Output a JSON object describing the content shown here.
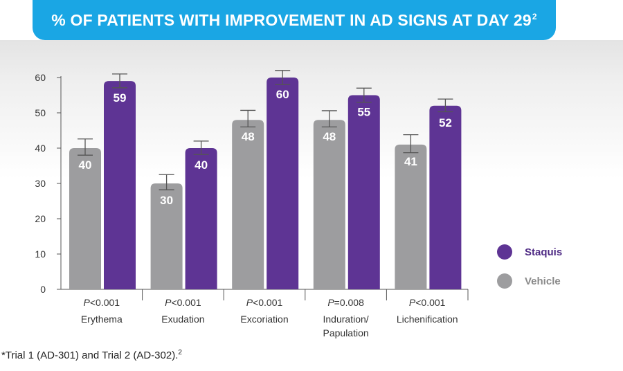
{
  "header": {
    "title": "% OF PATIENTS WITH IMPROVEMENT IN AD SIGNS AT DAY 29",
    "title_superscript": "2"
  },
  "footnote": {
    "text": "*Trial 1 (AD-301) and Trial 2 (AD-302).",
    "superscript": "2"
  },
  "colors": {
    "title_bar": "#1aa6e4",
    "staquis": "#5e3494",
    "vehicle": "#9d9d9f",
    "staquis_legend_text": "#4e2a84",
    "vehicle_legend_text": "#8a8a8a"
  },
  "chart_data": {
    "type": "bar",
    "categories": [
      "Erythema",
      "Exudation",
      "Excoriation",
      "Induration/\nPapulation",
      "Lichenification"
    ],
    "p_values": [
      {
        "prefix": "P",
        "rest": "<0.001"
      },
      {
        "prefix": "P",
        "rest": "<0.001"
      },
      {
        "prefix": "P",
        "rest": "<0.001"
      },
      {
        "prefix": "P",
        "rest": "=0.008"
      },
      {
        "prefix": "P",
        "rest": "<0.001"
      }
    ],
    "series": [
      {
        "name": "Vehicle",
        "values": [
          40,
          30,
          48,
          48,
          41
        ],
        "error_upper": [
          42.6,
          32.5,
          50.7,
          50.6,
          43.8
        ],
        "error_lower": [
          38.0,
          28.2,
          46.0,
          46.0,
          38.7
        ]
      },
      {
        "name": "Staquis",
        "values": [
          59,
          40,
          60,
          55,
          52
        ],
        "error_upper": [
          61.0,
          42.0,
          62.0,
          57.0,
          53.9
        ],
        "error_lower": [
          57.1,
          38.2,
          58.0,
          53.0,
          50.3
        ]
      }
    ],
    "ylim": [
      0,
      60
    ],
    "yticks": [
      0,
      10,
      20,
      30,
      40,
      50,
      60
    ],
    "legend": {
      "placement": "right",
      "entries": [
        "Staquis",
        "Vehicle"
      ]
    },
    "grid": false
  }
}
